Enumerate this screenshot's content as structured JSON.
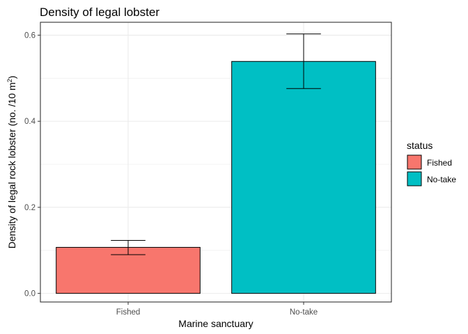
{
  "chart_data": {
    "type": "bar",
    "title": "Density of legal lobster",
    "xlabel": "Marine sanctuary",
    "ylabel_prefix": "Density of legal rock lobster (no. /10 m",
    "ylabel_sup": "2",
    "ylabel_suffix": ")",
    "categories": [
      "Fished",
      "No-take"
    ],
    "values": [
      0.107,
      0.539
    ],
    "errors": [
      {
        "low": 0.09,
        "high": 0.123
      },
      {
        "low": 0.476,
        "high": 0.603
      }
    ],
    "colors": [
      "#F8766D",
      "#00BFC4"
    ],
    "ylim": [
      -0.02,
      0.63
    ],
    "yticks": [
      0.0,
      0.2,
      0.4,
      0.6
    ],
    "ytick_labels": [
      "0.0",
      "0.2",
      "0.4",
      "0.6"
    ],
    "grid": true,
    "legend": {
      "title": "status",
      "position": "right",
      "entries": [
        "Fished",
        "No-take"
      ]
    }
  }
}
